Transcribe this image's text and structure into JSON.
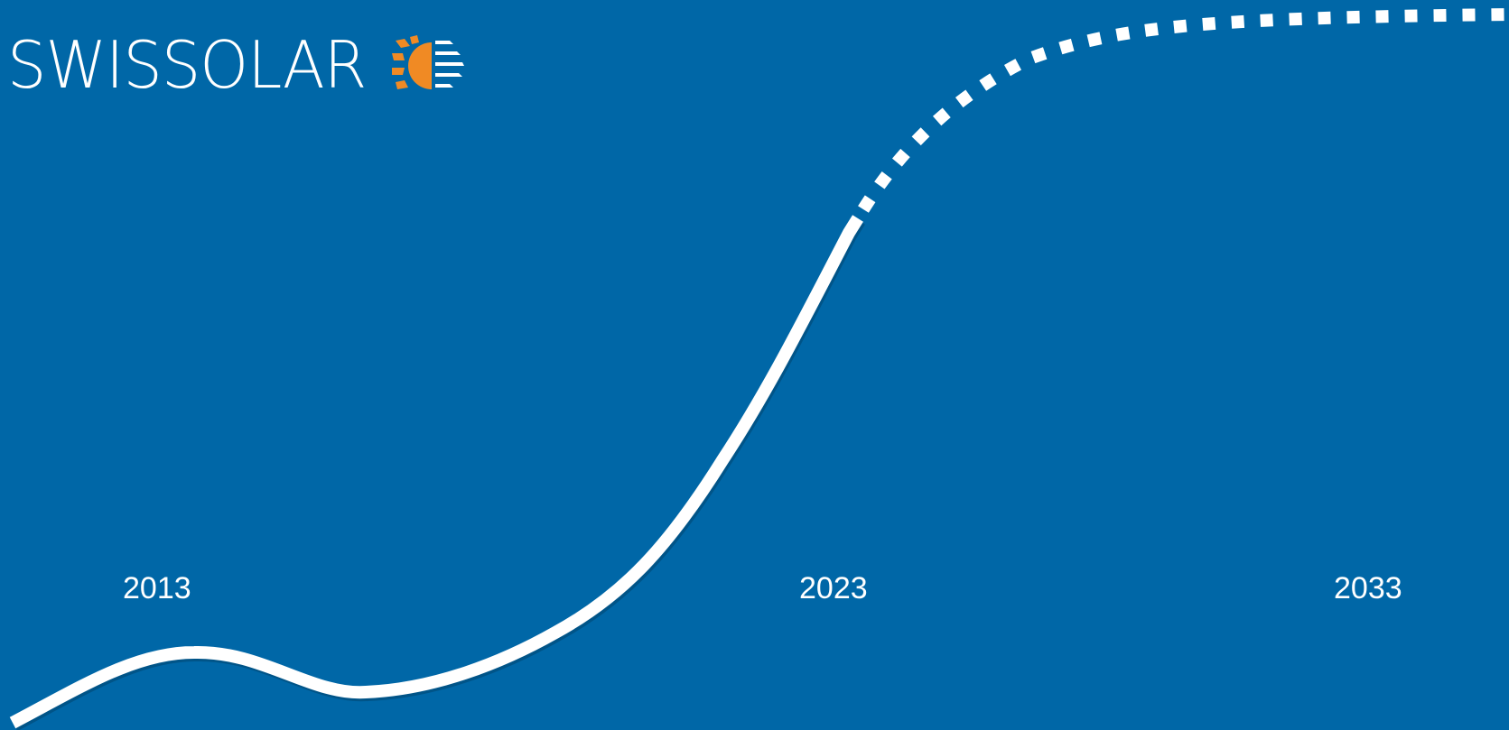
{
  "brand": {
    "name": "SWISSOLAR",
    "logo_icon": "sun-panel-icon",
    "colors": {
      "background": "#0067a7",
      "foreground": "#ffffff",
      "sun": "#f08a24"
    }
  },
  "timeline": {
    "year_labels": [
      "2013",
      "2023",
      "2033"
    ],
    "actual_line": "solid",
    "projection_line": "dotted"
  }
}
